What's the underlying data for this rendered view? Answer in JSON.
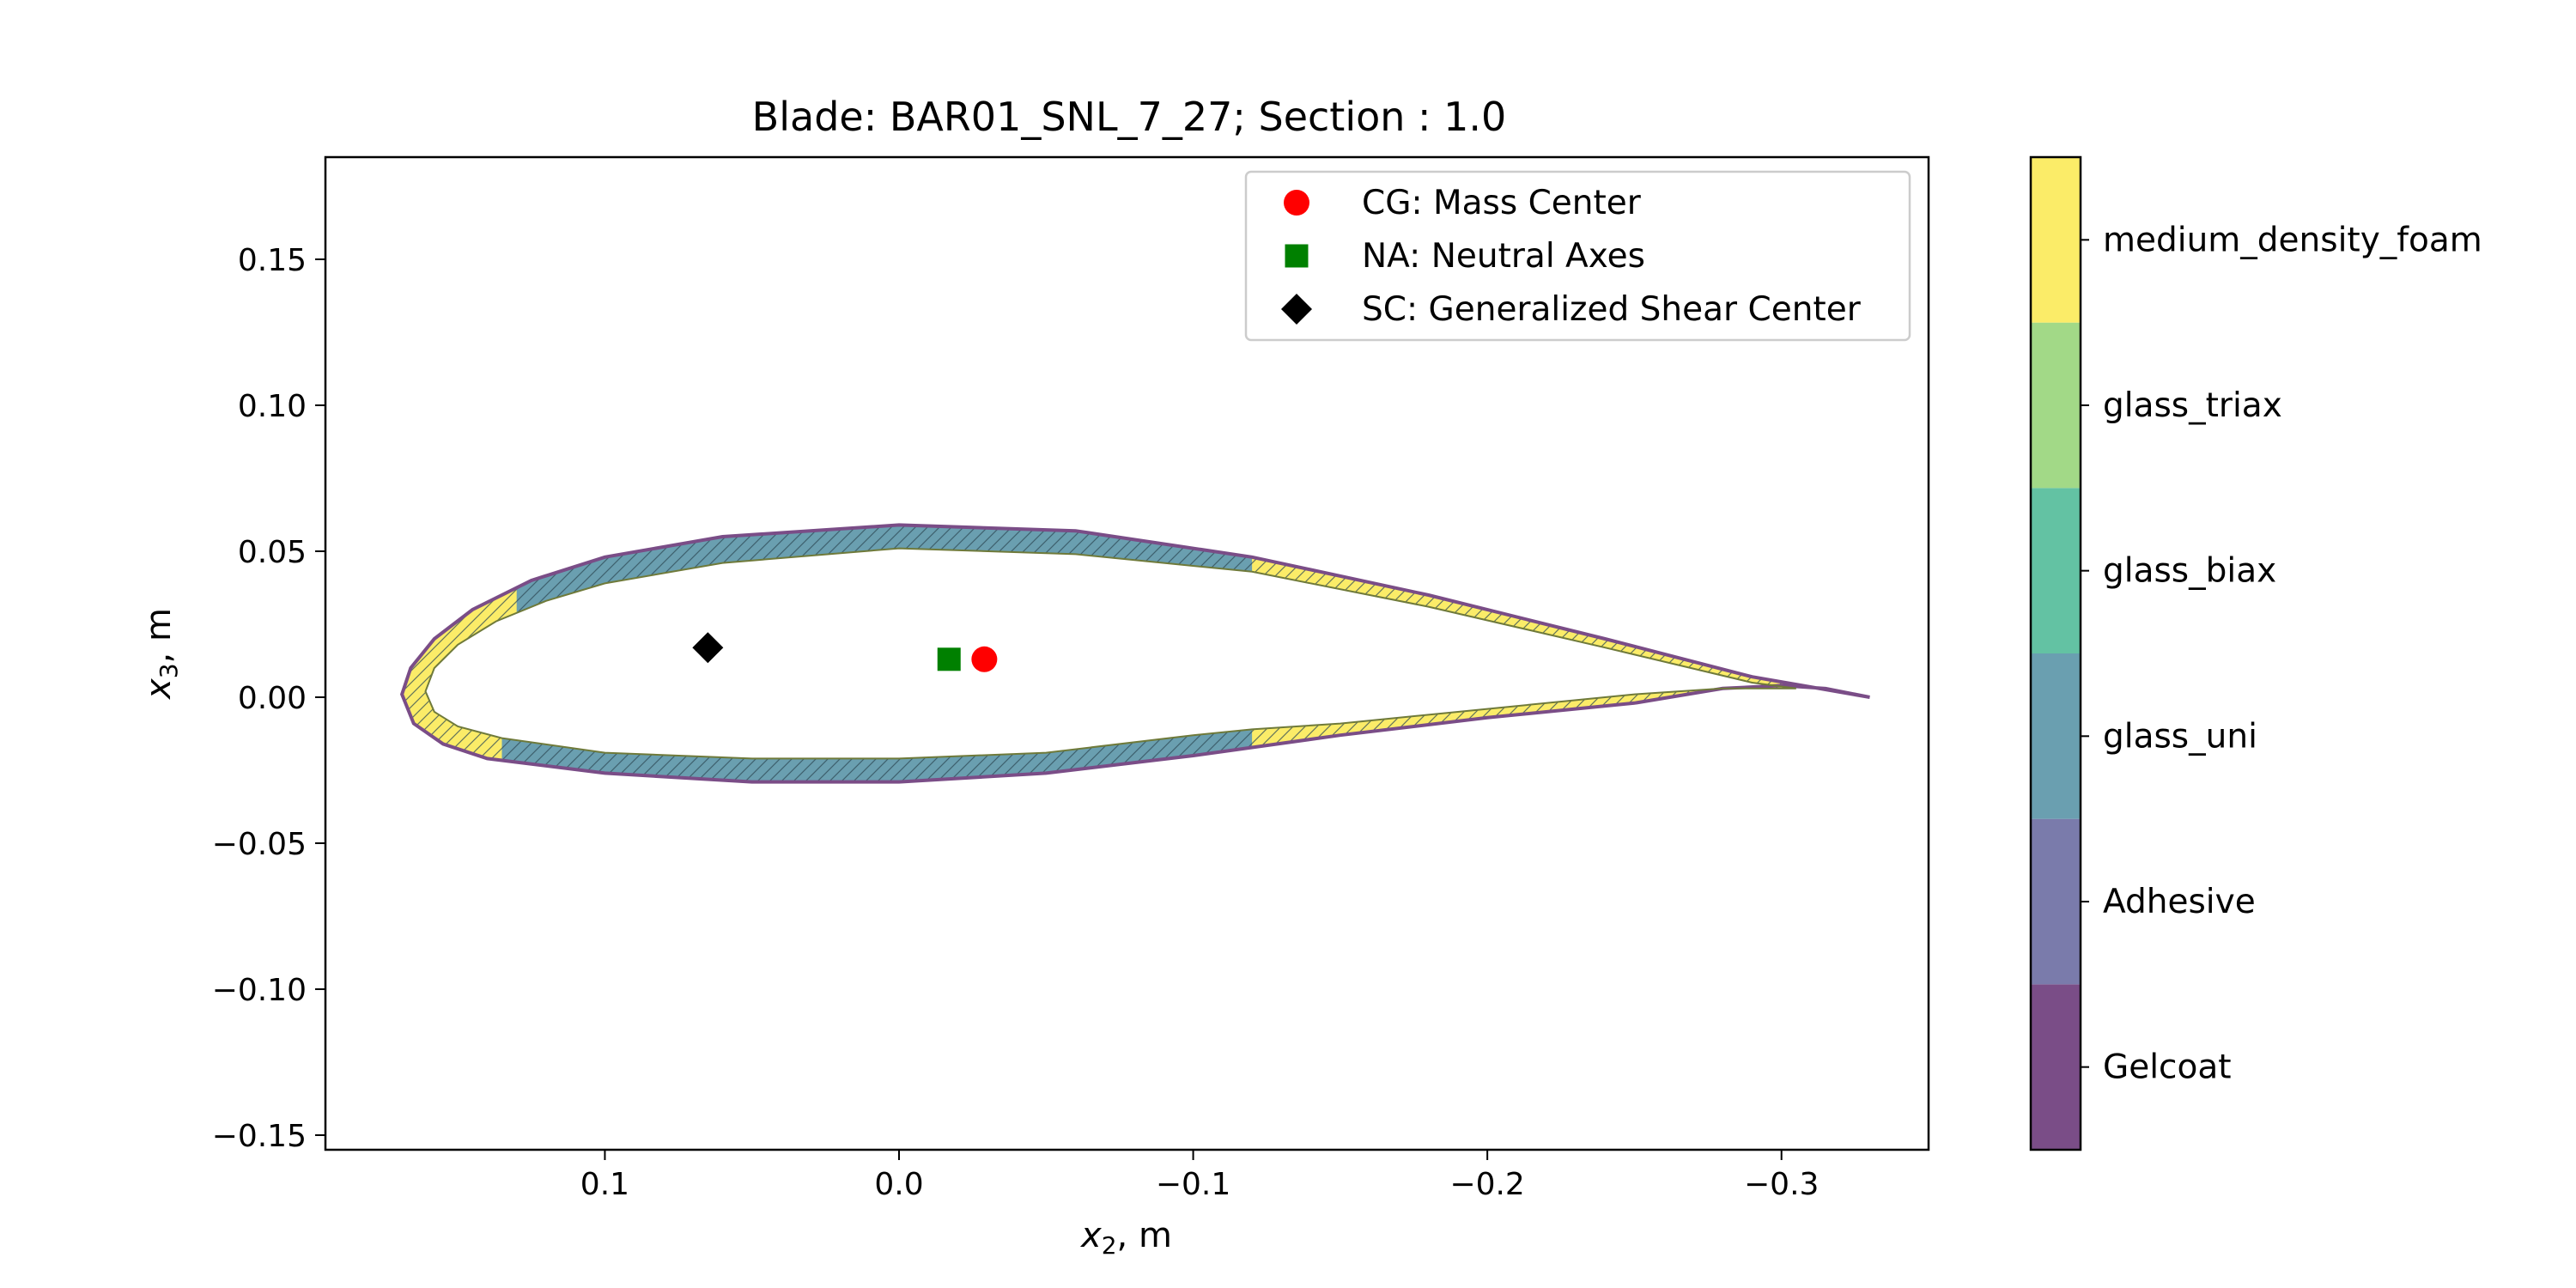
{
  "chart_data": {
    "type": "scatter",
    "title": "Blade: BAR01_SNL_7_27; Section : 1.0",
    "xlabel": {
      "var": "x",
      "sub": "2",
      "unit": ", m"
    },
    "ylabel": {
      "var": "x",
      "sub": "3",
      "unit": ", m"
    },
    "xlim": [
      0.195,
      -0.35
    ],
    "ylim": [
      -0.155,
      0.185
    ],
    "x_axis_inverted": true,
    "xticks": [
      0.1,
      0.0,
      -0.1,
      -0.2,
      -0.3
    ],
    "xtick_labels": [
      "0.1",
      "0.0",
      "−0.1",
      "−0.2",
      "−0.3"
    ],
    "yticks": [
      0.15,
      0.1,
      0.05,
      0.0,
      -0.05,
      -0.1,
      -0.15
    ],
    "ytick_labels": [
      "0.15",
      "0.10",
      "0.05",
      "0.00",
      "−0.05",
      "−0.10",
      "−0.15"
    ],
    "grid": false,
    "legend_position": "top-right",
    "points": [
      {
        "name": "CG: Mass Center",
        "marker": "circle",
        "color": "#ff0000",
        "x": -0.029,
        "y": 0.013
      },
      {
        "name": "NA: Neutral Axes",
        "marker": "square",
        "color": "#008000",
        "x": -0.017,
        "y": 0.013
      },
      {
        "name": "SC: Generalized Shear Center",
        "marker": "diamond",
        "color": "#000000",
        "x": 0.065,
        "y": 0.017
      }
    ],
    "airfoil": {
      "upper": [
        [
          0.169,
          0.001
        ],
        [
          0.166,
          0.01
        ],
        [
          0.158,
          0.02
        ],
        [
          0.145,
          0.03
        ],
        [
          0.125,
          0.04
        ],
        [
          0.1,
          0.048
        ],
        [
          0.06,
          0.055
        ],
        [
          0.0,
          0.059
        ],
        [
          -0.06,
          0.057
        ],
        [
          -0.12,
          0.048
        ],
        [
          -0.18,
          0.035
        ],
        [
          -0.24,
          0.02
        ],
        [
          -0.29,
          0.007
        ],
        [
          -0.33,
          0.0
        ]
      ],
      "lower": [
        [
          0.169,
          0.001
        ],
        [
          0.165,
          -0.009
        ],
        [
          0.155,
          -0.016
        ],
        [
          0.14,
          -0.021
        ],
        [
          0.1,
          -0.026
        ],
        [
          0.05,
          -0.029
        ],
        [
          0.0,
          -0.029
        ],
        [
          -0.05,
          -0.026
        ],
        [
          -0.1,
          -0.02
        ],
        [
          -0.15,
          -0.013
        ],
        [
          -0.2,
          -0.007
        ],
        [
          -0.25,
          -0.002
        ],
        [
          -0.28,
          0.003
        ],
        [
          -0.3,
          0.004
        ],
        [
          -0.315,
          0.003
        ],
        [
          -0.33,
          0.0
        ]
      ],
      "inner_upper": [
        [
          0.161,
          0.002
        ],
        [
          0.158,
          0.01
        ],
        [
          0.15,
          0.018
        ],
        [
          0.137,
          0.026
        ],
        [
          0.12,
          0.033
        ],
        [
          0.1,
          0.039
        ],
        [
          0.06,
          0.046
        ],
        [
          0.0,
          0.051
        ],
        [
          -0.06,
          0.049
        ],
        [
          -0.12,
          0.043
        ],
        [
          -0.18,
          0.031
        ],
        [
          -0.24,
          0.017
        ],
        [
          -0.29,
          0.005
        ],
        [
          -0.305,
          0.003
        ]
      ],
      "inner_lower": [
        [
          0.161,
          0.002
        ],
        [
          0.158,
          -0.005
        ],
        [
          0.15,
          -0.01
        ],
        [
          0.135,
          -0.014
        ],
        [
          0.1,
          -0.019
        ],
        [
          0.05,
          -0.021
        ],
        [
          0.0,
          -0.021
        ],
        [
          -0.05,
          -0.019
        ],
        [
          -0.1,
          -0.013
        ],
        [
          -0.12,
          -0.011
        ],
        [
          -0.15,
          -0.009
        ],
        [
          -0.2,
          -0.004
        ],
        [
          -0.25,
          0.001
        ],
        [
          -0.28,
          0.003
        ],
        [
          -0.305,
          0.003
        ]
      ],
      "spar_upper_x": [
        0.13,
        -0.12
      ],
      "spar_lower_x": [
        0.135,
        -0.12
      ]
    },
    "colorbar": {
      "labels": [
        "Gelcoat",
        "Adhesive",
        "glass_uni",
        "glass_biax",
        "glass_triax",
        "medium_density_foam"
      ],
      "colors": [
        "#7a4d87",
        "#7a7bab",
        "#6a9fb0",
        "#63c2a3",
        "#a2d987",
        "#fbec68"
      ]
    }
  }
}
